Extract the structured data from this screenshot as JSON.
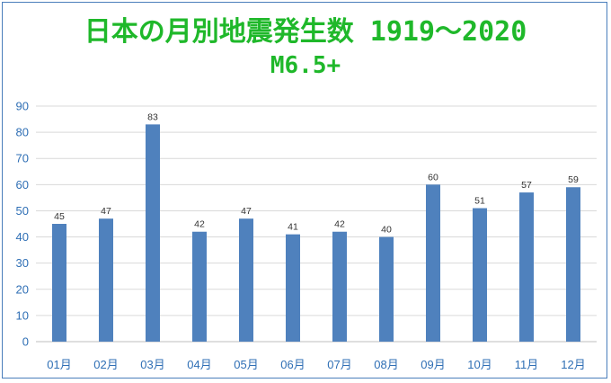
{
  "chart_data": {
    "type": "bar",
    "title": "日本の月別地震発生数 1919～2020",
    "subtitle": "M6.5+",
    "categories": [
      "01月",
      "02月",
      "03月",
      "04月",
      "05月",
      "06月",
      "07月",
      "08月",
      "09月",
      "10月",
      "11月",
      "12月"
    ],
    "values": [
      45,
      47,
      83,
      42,
      47,
      41,
      42,
      40,
      60,
      51,
      57,
      59
    ],
    "ylim": [
      0,
      90
    ],
    "yticks": [
      0,
      10,
      20,
      30,
      40,
      50,
      60,
      70,
      80,
      90
    ],
    "grid": true,
    "legend": "none",
    "bar_color": "#4f81bd",
    "title_color": "#1fb82a",
    "tick_color": "#2f6fb5"
  }
}
